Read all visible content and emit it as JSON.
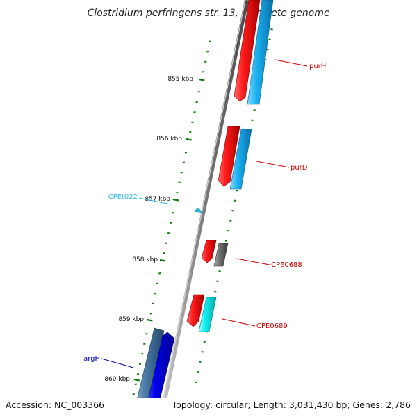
{
  "title": "Clostridium perfringens str. 13, complete genome",
  "footer": {
    "accession": "Accession: NC_003366",
    "summary": "Topology: circular; Length: 3,031,430 bp; Genes: 2,786"
  },
  "ruler": {
    "tick_color": "#0b7a0b",
    "major_labels": [
      "855 kbp",
      "856 kbp",
      "857 kbp",
      "858 kbp",
      "859 kbp",
      "860 kbp"
    ]
  },
  "genes": [
    {
      "name": "purH",
      "label_color": "#cc0000",
      "icon": "red-forward-arrow"
    },
    {
      "name": "purD",
      "label_color": "#cc0000",
      "icon": "red-forward-arrow"
    },
    {
      "name": "CPEt022",
      "label_color": "#2eb8e6",
      "icon": "cyan-trna-marker"
    },
    {
      "name": "CPE0688",
      "label_color": "#cc0000",
      "icon": "red-forward-arrow"
    },
    {
      "name": "CPE0689",
      "label_color": "#cc0000",
      "icon": "red-forward-arrow"
    },
    {
      "name": "argH",
      "label_color": "#0000aa",
      "icon": "blue-reverse-arrow"
    }
  ],
  "colors": {
    "backbone": "#8a8a8a",
    "cds_red": "#e00000",
    "cog_skyblue": "#22b4f0",
    "cog_cyan": "#12f0f0",
    "cog_gray": "#6e6e6e",
    "cds_blue": "#0000ee",
    "cog_steel": "#4a7aa8",
    "trna": "#2eb8e6"
  }
}
